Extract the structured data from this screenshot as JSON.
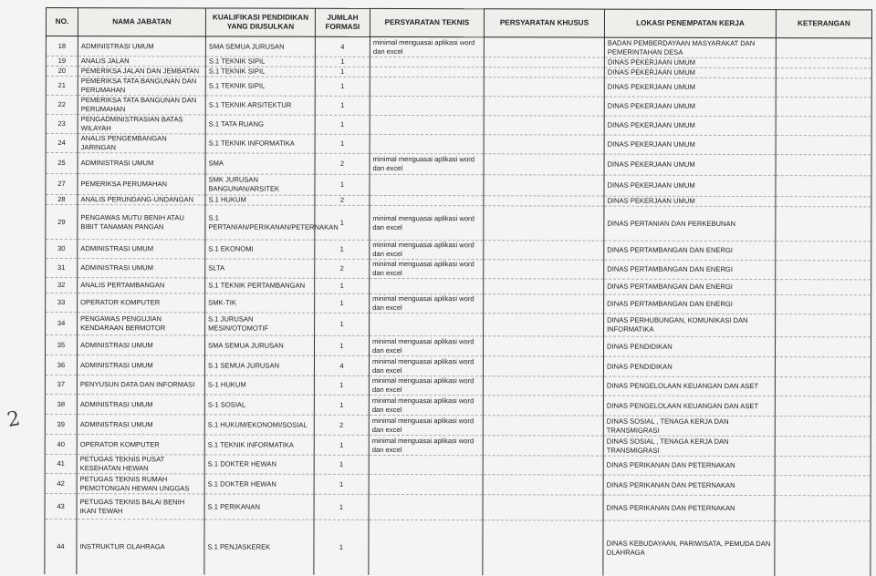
{
  "table": {
    "headers": {
      "no": "NO.",
      "nama": "NAMA JABATAN",
      "kualifikasi_line1": "KUALIFIKASI PENDIDIKAN",
      "kualifikasi_line2": "YANG DIUSULKAN",
      "jumlah_line1": "JUMLAH",
      "jumlah_line2": "FORMASI",
      "teknis": "PERSYARATAN TEKNIS",
      "khusus": "PERSYARATAN KHUSUS",
      "lokasi": "LOKASI PENEMPATAN KERJA",
      "keterangan": "KETERANGAN"
    },
    "rows": [
      {
        "no": "18",
        "nama": "ADMINISTRASI UMUM",
        "kualifikasi": "SMA SEMUA JURUSAN",
        "jumlah": "4",
        "teknis": "minimal menguasai aplikasi word dan excel",
        "khusus": "",
        "lokasi": "BADAN PEMBERDAYAAN MASYARAKAT DAN PEMERINTAHAN DESA",
        "keterangan": ""
      },
      {
        "no": "19",
        "nama": "ANALIS JALAN",
        "kualifikasi": "S.1 TEKNIK SIPIL",
        "jumlah": "1",
        "teknis": "",
        "khusus": "",
        "lokasi": "DINAS PEKERJAAN UMUM",
        "keterangan": ""
      },
      {
        "no": "20",
        "nama": "PEMERIKSA JALAN DAN JEMBATAN",
        "kualifikasi": "S.1 TEKNIK SIPIL",
        "jumlah": "1",
        "teknis": "",
        "khusus": "",
        "lokasi": "DINAS PEKERJAAN UMUM",
        "keterangan": ""
      },
      {
        "no": "21",
        "nama": "PEMERIKSA TATA BANGUNAN DAN PERUMAHAN",
        "kualifikasi": "S.1 TEKNIK SIPIL",
        "jumlah": "1",
        "teknis": "",
        "khusus": "",
        "lokasi": "DINAS PEKERJAAN UMUM",
        "keterangan": ""
      },
      {
        "no": "22",
        "nama": "PEMERIKSA TATA BANGUNAN DAN PERUMAHAN",
        "kualifikasi": "S.1 TEKNIK ARSITEKTUR",
        "jumlah": "1",
        "teknis": "",
        "khusus": "",
        "lokasi": "DINAS PEKERJAAN UMUM",
        "keterangan": ""
      },
      {
        "no": "23",
        "nama": "PENGADMINISTRASIAN BATAS WILAYAH",
        "kualifikasi": "S.1 TATA RUANG",
        "jumlah": "1",
        "teknis": "",
        "khusus": "",
        "lokasi": "DINAS PEKERJAAN UMUM",
        "keterangan": ""
      },
      {
        "no": "24",
        "nama": "ANALIS PENGEMBANGAN JARINGAN",
        "kualifikasi": "S.1 TEKNIK INFORMATIKA",
        "jumlah": "1",
        "teknis": "",
        "khusus": "",
        "lokasi": "DINAS PEKERJAAN UMUM",
        "keterangan": ""
      },
      {
        "no": "25",
        "nama": "ADMINISTRASI UMUM",
        "kualifikasi": "SMA",
        "jumlah": "2",
        "teknis": "minimal menguasai aplikasi word dan excel",
        "khusus": "",
        "lokasi": "DINAS PEKERJAAN UMUM",
        "keterangan": ""
      },
      {
        "no": "27",
        "nama": "PEMERIKSA PERUMAHAN",
        "kualifikasi": "SMK JURUSAN BANGUNAN/ARSITEK",
        "jumlah": "1",
        "teknis": "",
        "khusus": "",
        "lokasi": "DINAS PEKERJAAN UMUM",
        "keterangan": ""
      },
      {
        "no": "28",
        "nama": "ANALIS PERUNDANG-UNDANGAN",
        "kualifikasi": "S.1 HUKUM",
        "jumlah": "2",
        "teknis": "",
        "khusus": "",
        "lokasi": "DINAS PEKERJAAN UMUM",
        "keterangan": ""
      },
      {
        "no": "29",
        "nama": "PENGAWAS MUTU BENIH ATAU BIBIT TANAMAN PANGAN",
        "kualifikasi": "S.1 PERTANIAN/PERIKANAN/PETERNAKAN",
        "jumlah": "1",
        "teknis": "minimal menguasai aplikasi word dan excel",
        "khusus": "",
        "lokasi": "DINAS PERTANIAN DAN PERKEBUNAN",
        "keterangan": ""
      },
      {
        "no": "30",
        "nama": "ADMINISTRASI UMUM",
        "kualifikasi": "S.1 EKONOMI",
        "jumlah": "1",
        "teknis": "minimal menguasai aplikasi word dan excel",
        "khusus": "",
        "lokasi": "DINAS PERTAMBANGAN DAN ENERGI",
        "keterangan": ""
      },
      {
        "no": "31",
        "nama": "ADMINISTRASI UMUM",
        "kualifikasi": "SLTA",
        "jumlah": "2",
        "teknis": "minimal menguasai aplikasi word dan excel",
        "khusus": "",
        "lokasi": "DINAS PERTAMBANGAN DAN ENERGI",
        "keterangan": ""
      },
      {
        "no": "32",
        "nama": "ANALIS PERTAMBANGAN",
        "kualifikasi": "S.1 TEKNIK PERTAMBANGAN",
        "jumlah": "1",
        "teknis": "",
        "khusus": "",
        "lokasi": "DINAS PERTAMBANGAN DAN ENERGI",
        "keterangan": ""
      },
      {
        "no": "33",
        "nama": "OPERATOR KOMPUTER",
        "kualifikasi": "SMK-TIK",
        "jumlah": "1",
        "teknis": "minimal menguasai aplikasi word dan excel",
        "khusus": "",
        "lokasi": "DINAS PERTAMBANGAN DAN ENERGI",
        "keterangan": ""
      },
      {
        "no": "34",
        "nama": "PENGAWAS PENGUJIAN KENDARAAN BERMOTOR",
        "kualifikasi": "S.1 JURUSAN MESIN/OTOMOTIF",
        "jumlah": "1",
        "teknis": "",
        "khusus": "",
        "lokasi": "DINAS PERHUBUNGAN, KOMUNIKASI DAN INFORMATIKA",
        "keterangan": ""
      },
      {
        "no": "35",
        "nama": "ADMINISTRASI UMUM",
        "kualifikasi": "SMA SEMUA JURUSAN",
        "jumlah": "1",
        "teknis": "minimal menguasai aplikasi word dan excel",
        "khusus": "",
        "lokasi": "DINAS PENDIDIKAN",
        "keterangan": ""
      },
      {
        "no": "36",
        "nama": "ADMINISTRASI UMUM",
        "kualifikasi": "S.1 SEMUA JURUSAN",
        "jumlah": "4",
        "teknis": "minimal menguasai aplikasi word dan excel",
        "khusus": "",
        "lokasi": "DINAS PENDIDIKAN",
        "keterangan": ""
      },
      {
        "no": "37",
        "nama": "PENYUSUN DATA DAN INFORMASI",
        "kualifikasi": "S-1 HUKUM",
        "jumlah": "1",
        "teknis": "minimal menguasai aplikasi word dan excel",
        "khusus": "",
        "lokasi": "DINAS PENGELOLAAN KEUANGAN DAN ASET",
        "keterangan": ""
      },
      {
        "no": "38",
        "nama": "ADMINISTRASI UMUM",
        "kualifikasi": "S-1 SOSIAL",
        "jumlah": "1",
        "teknis": "minimal menguasai aplikasi word dan excel",
        "khusus": "",
        "lokasi": "DINAS PENGELOLAAN KEUANGAN DAN ASET",
        "keterangan": ""
      },
      {
        "no": "39",
        "nama": "ADMINISTRASI UMUM",
        "kualifikasi": "S.1 HUKUM/EKONOMI/SOSIAL",
        "jumlah": "2",
        "teknis": "minimal menguasai aplikasi word dan excel",
        "khusus": "",
        "lokasi": "DINAS SOSIAL , TENAGA KERJA DAN TRANSMIGRASI",
        "keterangan": ""
      },
      {
        "no": "40",
        "nama": "OPERATOR KOMPUTER",
        "kualifikasi": "S.1 TEKNIK INFORMATIKA",
        "jumlah": "1",
        "teknis": "minimal menguasai aplikasi word dan excel",
        "khusus": "",
        "lokasi": "DINAS SOSIAL , TENAGA KERJA DAN TRANSMIGRASI",
        "keterangan": ""
      },
      {
        "no": "41",
        "nama": "PETUGAS TEKNIS PUSAT KESEHATAN HEWAN",
        "kualifikasi": "S.1 DOKTER HEWAN",
        "jumlah": "1",
        "teknis": "",
        "khusus": "",
        "lokasi": "DINAS PERIKANAN DAN PETERNAKAN",
        "keterangan": ""
      },
      {
        "no": "42",
        "nama": "PETUGAS TEKNIS RUMAH PEMOTONGAN HEWAN UNGGAS",
        "kualifikasi": "S.1 DOKTER HEWAN",
        "jumlah": "1",
        "teknis": "",
        "khusus": "",
        "lokasi": "DINAS PERIKANAN DAN PETERNAKAN",
        "keterangan": ""
      },
      {
        "no": "43",
        "nama": "PETUGAS TEKNIS BALAI BENIH IKAN TEWAH",
        "kualifikasi": "S.1 PERIKANAN",
        "jumlah": "1",
        "teknis": "",
        "khusus": "",
        "lokasi": "DINAS PERIKANAN DAN PETERNAKAN",
        "keterangan": ""
      },
      {
        "no": "44",
        "nama": "INSTRUKTUR OLAHRAGA",
        "kualifikasi": "S.1 PENJASKEREK",
        "jumlah": "1",
        "teknis": "",
        "khusus": "",
        "lokasi": "DINAS KEBUDAYAAN, PARIWISATA, PEMUDA DAN OLAHRAGA",
        "keterangan": ""
      }
    ]
  },
  "margin_mark": "2"
}
